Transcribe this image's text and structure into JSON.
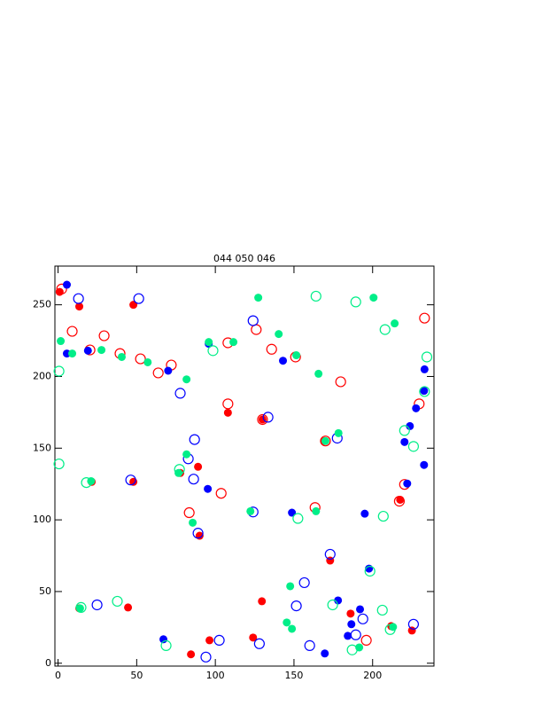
{
  "chart_data": {
    "type": "scatter",
    "title": "044 050 046",
    "xlim": [
      -2,
      239
    ],
    "ylim": [
      -2,
      277
    ],
    "xticks": [
      0,
      50,
      100,
      150,
      200
    ],
    "yticks": [
      0,
      50,
      100,
      150,
      200,
      250
    ],
    "series": [
      {
        "color": "#ff0000",
        "filled": true,
        "x": [
          13.5,
          47.9,
          108,
          130,
          89,
          77.7,
          21.4,
          47.9,
          90,
          217.5,
          173,
          129.6,
          13.5,
          44.5,
          186,
          211.8,
          225,
          124,
          96.3,
          84.5,
          1,
          169.5
        ],
        "values": [
          248.8,
          250,
          174.7,
          170,
          137,
          132.7,
          126.5,
          126.5,
          88.9,
          114,
          71.6,
          43.2,
          38.3,
          38.9,
          34.6,
          25.9,
          22.8,
          17.9,
          16,
          6.2,
          259,
          155
        ]
      },
      {
        "color": "#ff0000",
        "filled": false,
        "x": [
          2.3,
          9,
          20.3,
          29.3,
          39.4,
          52.4,
          63.7,
          72,
          108,
          126,
          135.8,
          151,
          179.7,
          233,
          229.6,
          108,
          130,
          170,
          103.7,
          83.4,
          163.4,
          220.3,
          217,
          196
        ],
        "values": [
          261,
          231.5,
          218.5,
          228.4,
          216,
          212.3,
          202.5,
          208,
          223.5,
          232.7,
          219,
          213.6,
          196.3,
          240.7,
          180.9,
          180.9,
          170,
          155,
          118.5,
          105,
          108.6,
          124.7,
          113,
          16
        ]
      },
      {
        "color": "#0000ff",
        "filled": true,
        "x": [
          5.6,
          5.6,
          19,
          70,
          95.8,
          95.2,
          148.7,
          143,
          222,
          220.3,
          223.7,
          227.6,
          232.7,
          233,
          232.7,
          197.7,
          178,
          186.5,
          184.2,
          192,
          195,
          67,
          169.6
        ],
        "values": [
          264,
          216,
          218,
          204,
          222.8,
          121.6,
          105,
          211,
          125.3,
          154.3,
          165.4,
          177.8,
          190,
          205,
          138.3,
          66,
          43.8,
          27.2,
          19.1,
          37.6,
          104.3,
          16.7,
          6.8
        ]
      },
      {
        "color": "#0000ff",
        "filled": false,
        "x": [
          13,
          51.3,
          82.8,
          86.8,
          77.7,
          86.2,
          46.2,
          89,
          124,
          133.5,
          177.5,
          124,
          173,
          156.6,
          151.5,
          160,
          128,
          102.5,
          94,
          24.8,
          189.3,
          193.8,
          226
        ],
        "values": [
          254.3,
          254.3,
          142.6,
          156,
          188.3,
          128.4,
          127.8,
          90.7,
          238.9,
          171.6,
          157,
          105.5,
          76,
          56.2,
          40,
          12.3,
          13.6,
          16,
          4.3,
          40.7,
          19.8,
          30.9,
          27.2
        ]
      },
      {
        "color": "#00ee88",
        "filled": true,
        "x": [
          1.7,
          9,
          27.6,
          40.5,
          57,
          81.7,
          95.8,
          111.5,
          127.3,
          140.3,
          151.5,
          165.6,
          200.6,
          214,
          81.7,
          76.6,
          21,
          85.6,
          122.3,
          164,
          170,
          178.3,
          147.6,
          145.4,
          148.7,
          191.5,
          213,
          14
        ],
        "values": [
          224.7,
          216,
          218.5,
          213.6,
          209.9,
          198,
          224,
          224,
          255,
          229.6,
          214.8,
          201.9,
          255,
          237,
          145.7,
          132.7,
          127,
          98,
          106,
          106,
          155,
          160.5,
          53.7,
          28.4,
          24,
          11,
          25.3,
          38.3
        ]
      },
      {
        "color": "#00ee88",
        "filled": false,
        "x": [
          0.6,
          0.6,
          18,
          77.2,
          98.5,
          164,
          189.3,
          207.9,
          234.5,
          220.3,
          226,
          233,
          206.8,
          152.5,
          14.6,
          37.7,
          174.6,
          198.3,
          68.7,
          187,
          206.2,
          211.2
        ],
        "values": [
          203.7,
          139,
          126,
          135.2,
          218,
          256,
          252,
          232.7,
          213.6,
          162.3,
          151.2,
          189.5,
          102.5,
          101,
          38.9,
          43.2,
          40.7,
          64.2,
          12.3,
          9.3,
          37,
          23.5
        ]
      }
    ]
  }
}
